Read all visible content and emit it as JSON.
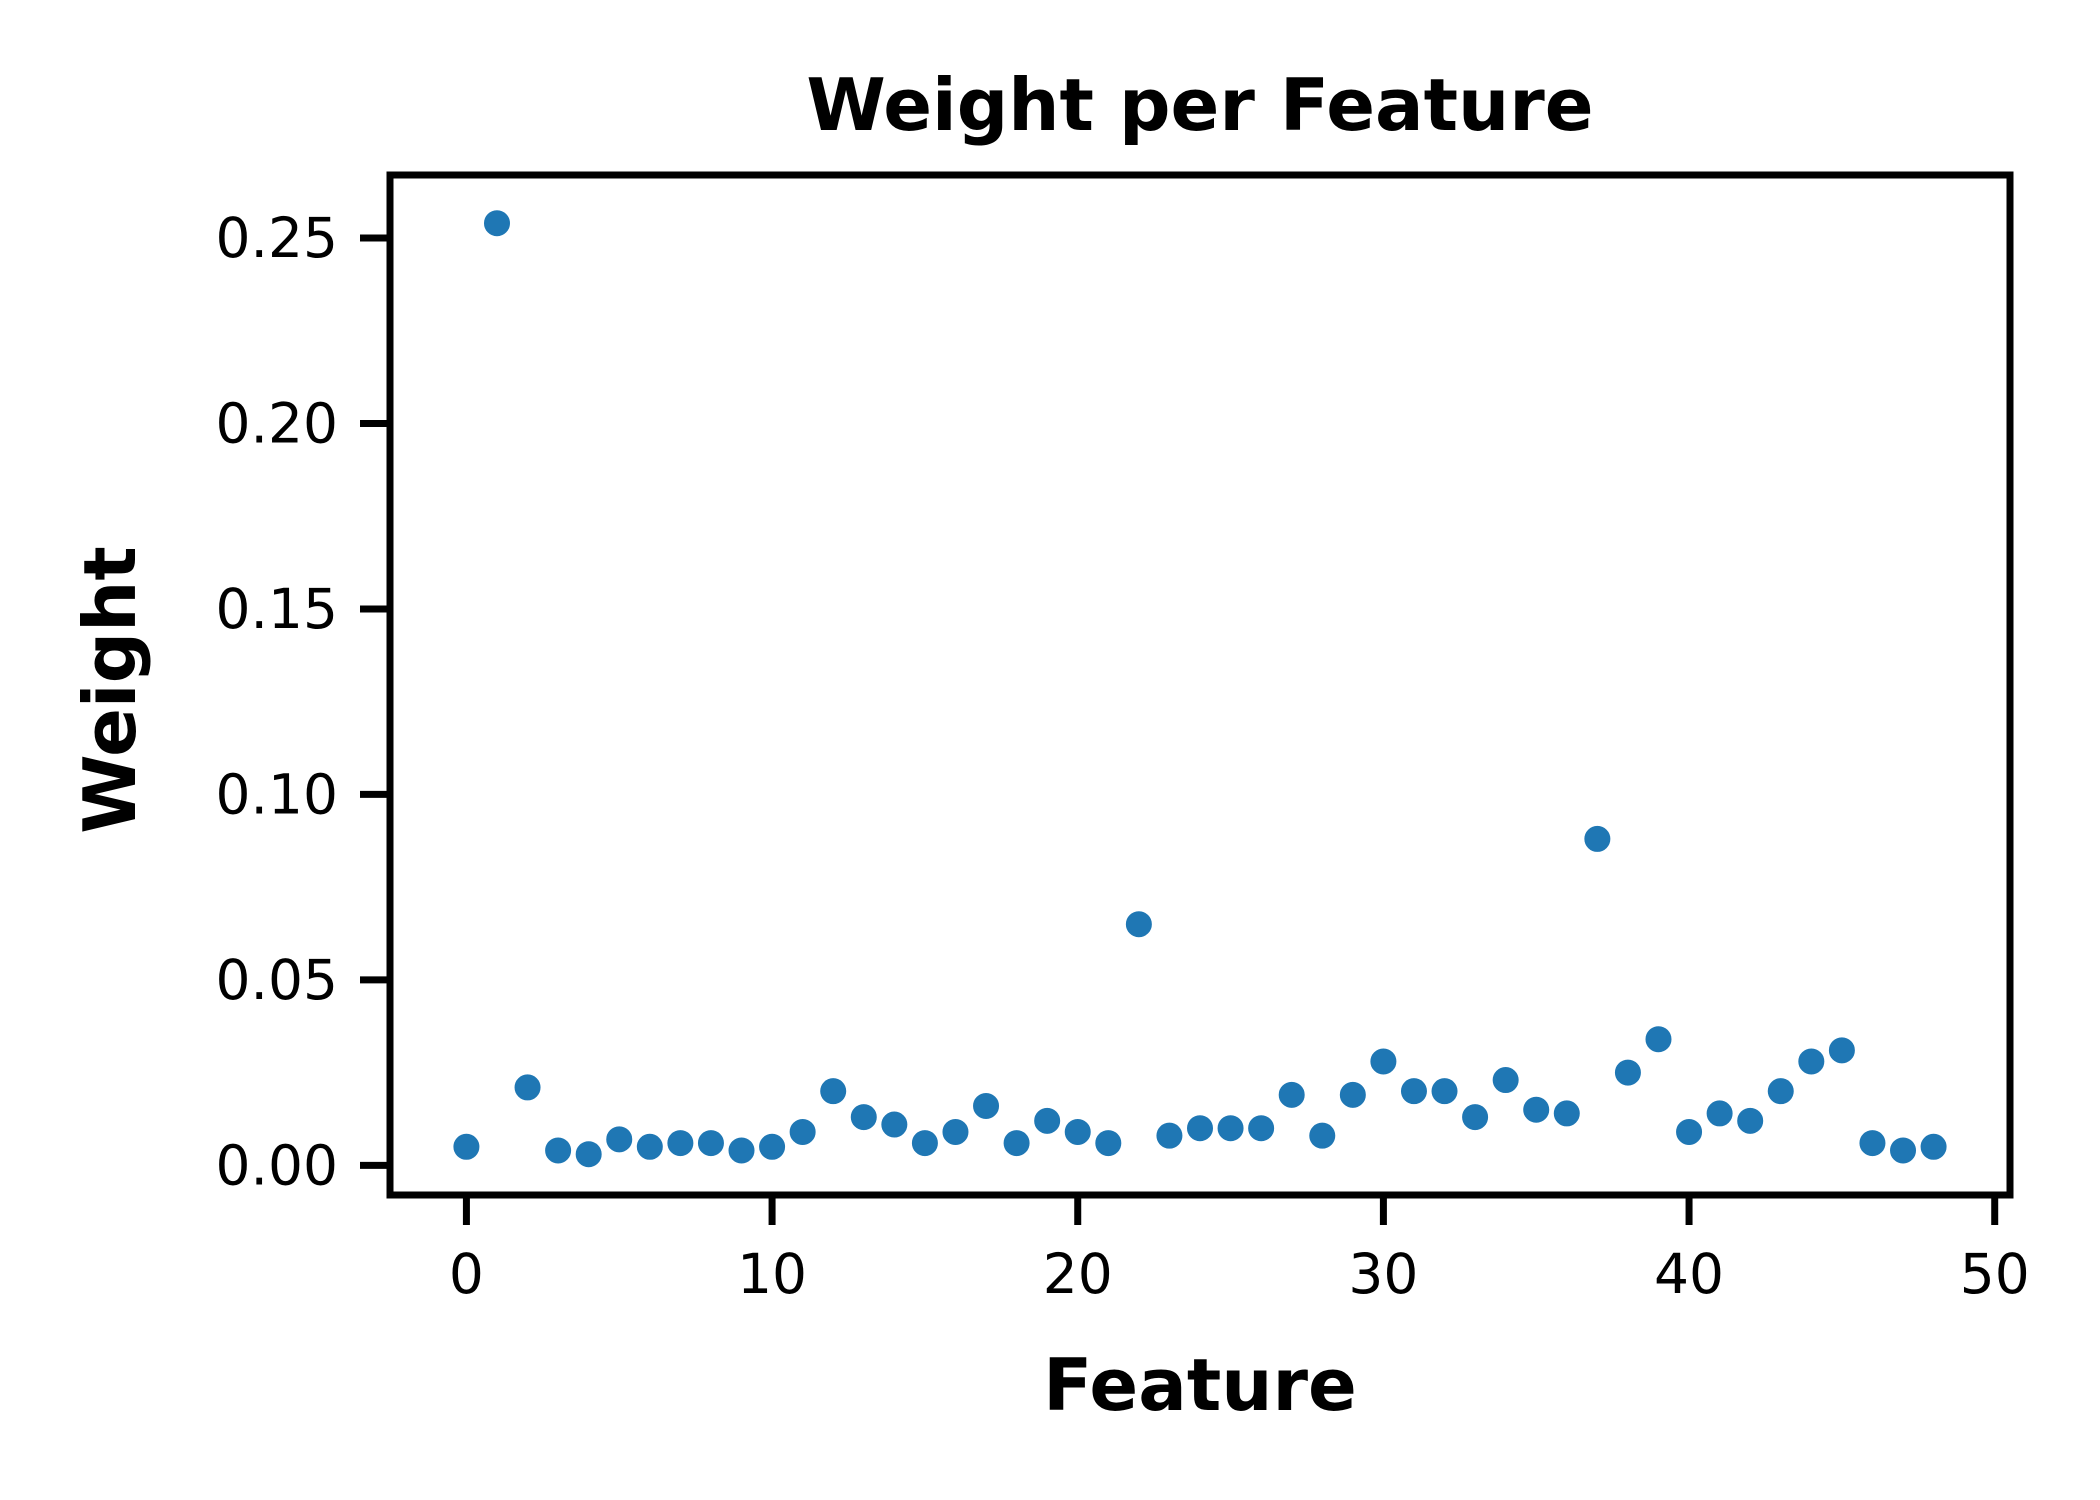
{
  "chart_data": {
    "type": "scatter",
    "title": "Weight per Feature",
    "xlabel": "Feature",
    "ylabel": "Weight",
    "xlim": [
      -2.5,
      50.5
    ],
    "ylim": [
      -0.008,
      0.267
    ],
    "xticks": [
      0,
      10,
      20,
      30,
      40,
      50
    ],
    "xtick_labels": [
      "0",
      "10",
      "20",
      "30",
      "40",
      "50"
    ],
    "yticks": [
      0.0,
      0.05,
      0.1,
      0.15,
      0.2,
      0.25
    ],
    "ytick_labels": [
      "0.00",
      "0.05",
      "0.10",
      "0.15",
      "0.20",
      "0.25"
    ],
    "grid": false,
    "color": "#1f77b4",
    "x": [
      0,
      1,
      2,
      3,
      4,
      5,
      6,
      7,
      8,
      9,
      10,
      11,
      12,
      13,
      14,
      15,
      16,
      17,
      18,
      19,
      20,
      21,
      22,
      23,
      24,
      25,
      26,
      27,
      28,
      29,
      30,
      31,
      32,
      33,
      34,
      35,
      36,
      37,
      38,
      39,
      40,
      41,
      42,
      43,
      44,
      45,
      46,
      47,
      48
    ],
    "y": [
      0.005,
      0.254,
      0.021,
      0.004,
      0.003,
      0.007,
      0.005,
      0.006,
      0.006,
      0.004,
      0.005,
      0.009,
      0.02,
      0.013,
      0.011,
      0.006,
      0.009,
      0.016,
      0.006,
      0.012,
      0.009,
      0.006,
      0.065,
      0.008,
      0.01,
      0.01,
      0.01,
      0.019,
      0.008,
      0.019,
      0.028,
      0.02,
      0.02,
      0.013,
      0.023,
      0.015,
      0.014,
      0.088,
      0.025,
      0.034,
      0.009,
      0.014,
      0.012,
      0.02,
      0.028,
      0.031,
      0.006,
      0.004,
      0.005
    ]
  }
}
